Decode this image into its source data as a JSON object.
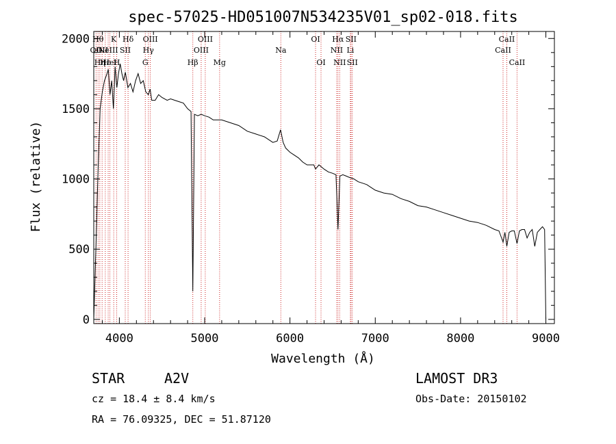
{
  "chart_data": {
    "type": "line",
    "title": "spec-57025-HD051007N534235V01_sp02-018.fits",
    "xlabel": "Wavelength (Å)",
    "ylabel": "Flux (relative)",
    "xlim": [
      3700,
      9100
    ],
    "ylim": [
      -30,
      2050
    ],
    "x_ticks": [
      4000,
      5000,
      6000,
      7000,
      8000,
      9000
    ],
    "y_ticks": [
      0,
      500,
      1000,
      1500,
      2000
    ],
    "grid": false,
    "series": [
      {
        "name": "flux",
        "x": [
          3700,
          3725,
          3750,
          3775,
          3800,
          3825,
          3850,
          3870,
          3890,
          3910,
          3930,
          3950,
          3970,
          3990,
          4010,
          4030,
          4050,
          4070,
          4100,
          4130,
          4160,
          4190,
          4220,
          4250,
          4280,
          4310,
          4340,
          4360,
          4380,
          4420,
          4460,
          4500,
          4560,
          4600,
          4650,
          4700,
          4750,
          4800,
          4840,
          4861,
          4880,
          4920,
          4960,
          5000,
          5050,
          5100,
          5200,
          5300,
          5400,
          5500,
          5600,
          5700,
          5800,
          5850,
          5890,
          5920,
          5950,
          6000,
          6050,
          6100,
          6150,
          6200,
          6280,
          6300,
          6340,
          6400,
          6450,
          6500,
          6540,
          6563,
          6585,
          6620,
          6660,
          6700,
          6750,
          6800,
          6850,
          6900,
          6950,
          7000,
          7100,
          7200,
          7300,
          7400,
          7500,
          7600,
          7700,
          7800,
          7900,
          8000,
          8100,
          8200,
          8300,
          8400,
          8450,
          8498,
          8520,
          8542,
          8570,
          8600,
          8630,
          8662,
          8690,
          8720,
          8750,
          8780,
          8810,
          8840,
          8870,
          8900,
          8930,
          8960,
          8985,
          9000
        ],
        "y": [
          0,
          500,
          1050,
          1500,
          1620,
          1700,
          1740,
          1780,
          1600,
          1700,
          1500,
          1800,
          1650,
          1750,
          1820,
          1750,
          1700,
          1760,
          1650,
          1680,
          1620,
          1700,
          1750,
          1680,
          1700,
          1620,
          1600,
          1640,
          1560,
          1560,
          1600,
          1580,
          1560,
          1570,
          1560,
          1550,
          1540,
          1500,
          1480,
          200,
          1460,
          1450,
          1460,
          1450,
          1440,
          1420,
          1420,
          1400,
          1380,
          1340,
          1320,
          1300,
          1260,
          1270,
          1350,
          1260,
          1220,
          1190,
          1170,
          1150,
          1120,
          1100,
          1100,
          1070,
          1100,
          1070,
          1050,
          1040,
          1030,
          640,
          1020,
          1030,
          1020,
          1010,
          1000,
          980,
          970,
          960,
          940,
          920,
          900,
          890,
          860,
          840,
          810,
          800,
          780,
          760,
          740,
          720,
          700,
          690,
          670,
          640,
          630,
          550,
          620,
          520,
          620,
          630,
          630,
          540,
          630,
          640,
          640,
          580,
          620,
          640,
          520,
          620,
          640,
          660,
          640,
          0
        ]
      }
    ],
    "line_labels": [
      {
        "wave": 3727,
        "label": "OII",
        "row": 2
      },
      {
        "wave": 3750,
        "label": "Hθ",
        "row": 1
      },
      {
        "wave": 3771,
        "label": "Hη",
        "row": 3
      },
      {
        "wave": 3798,
        "label": "OII",
        "row": 2
      },
      {
        "wave": 3835,
        "label": "Hε",
        "row": 3
      },
      {
        "wave": 3869,
        "label": "NeIII",
        "row": 2
      },
      {
        "wave": 3889,
        "label": "HeI",
        "row": 3
      },
      {
        "wave": 3934,
        "label": "K",
        "row": 1
      },
      {
        "wave": 3969,
        "label": "H",
        "row": 3
      },
      {
        "wave": 4069,
        "label": "SII",
        "row": 2
      },
      {
        "wave": 4102,
        "label": "Hδ",
        "row": 1
      },
      {
        "wave": 4304,
        "label": "G",
        "row": 3
      },
      {
        "wave": 4340,
        "label": "Hγ",
        "row": 2
      },
      {
        "wave": 4363,
        "label": "OIII",
        "row": 1
      },
      {
        "wave": 4861,
        "label": "Hβ",
        "row": 3
      },
      {
        "wave": 4959,
        "label": "OIII",
        "row": 2
      },
      {
        "wave": 5007,
        "label": "OIII",
        "row": 1
      },
      {
        "wave": 5175,
        "label": "Mg",
        "row": 3
      },
      {
        "wave": 5893,
        "label": "Na",
        "row": 2
      },
      {
        "wave": 6300,
        "label": "OI",
        "row": 1
      },
      {
        "wave": 6364,
        "label": "OI",
        "row": 3
      },
      {
        "wave": 6548,
        "label": "NII",
        "row": 2
      },
      {
        "wave": 6563,
        "label": "Hα",
        "row": 1
      },
      {
        "wave": 6583,
        "label": "NII",
        "row": 3
      },
      {
        "wave": 6708,
        "label": "Li",
        "row": 2
      },
      {
        "wave": 6716,
        "label": "SII",
        "row": 1
      },
      {
        "wave": 6731,
        "label": "SII",
        "row": 3
      },
      {
        "wave": 8498,
        "label": "CaII",
        "row": 2
      },
      {
        "wave": 8542,
        "label": "CaII",
        "row": 1
      },
      {
        "wave": 8662,
        "label": "CaII",
        "row": 3
      }
    ],
    "line_color": "#cc2222"
  },
  "info": {
    "object_class": "STAR",
    "subclass": "A2V",
    "survey": "LAMOST DR3",
    "redshift": "cz =  18.4 ± 8.4 km/s",
    "obs_date": "Obs-Date: 20150102",
    "coords": "RA =  76.09325, DEC =  51.87120"
  }
}
